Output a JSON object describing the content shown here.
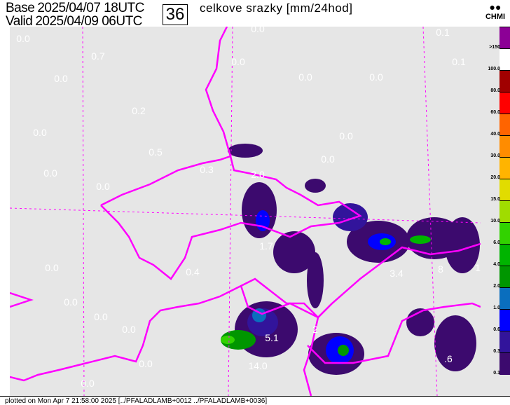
{
  "header": {
    "base_label": "Base",
    "base_time": "2025/04/07 18UTC",
    "valid_label": "Valid",
    "valid_time": "2025/04/09 06UTC",
    "forecast_hour": "36",
    "title": "celkove srazky [mm/24hod]",
    "logo_text": "CHMI"
  },
  "legend": {
    "levels": [
      {
        "label": ">150",
        "color": "#8c0096"
      },
      {
        "label": "100.0",
        "color": "#ffffff"
      },
      {
        "label": "80.0",
        "color": "#a00000"
      },
      {
        "label": "60.0",
        "color": "#ff0000"
      },
      {
        "label": "40.0",
        "color": "#ff6400"
      },
      {
        "label": "30.0",
        "color": "#ff8c00"
      },
      {
        "label": "20.0",
        "color": "#ffb400"
      },
      {
        "label": "15.0",
        "color": "#e1dc00"
      },
      {
        "label": "10.0",
        "color": "#a0dc00"
      },
      {
        "label": "6.0",
        "color": "#32d200"
      },
      {
        "label": "4.0",
        "color": "#00b400"
      },
      {
        "label": "2.0",
        "color": "#009600"
      },
      {
        "label": "1.0",
        "color": "#0a6ebe"
      },
      {
        "label": "0.6",
        "color": "#0000ff"
      },
      {
        "label": "0.3",
        "color": "#32149b"
      },
      {
        "label": "0.1",
        "color": "#3c0a6e"
      }
    ]
  },
  "map": {
    "background": "#e6e6e6",
    "border_color": "#ff00ff",
    "values": [
      "0.0",
      "0.1",
      "0.0",
      "0.7",
      "0.0",
      "0.1",
      "0.0",
      "0.0",
      "0.0",
      "0.2",
      "0.0",
      "0.0",
      "0.5",
      "0.0",
      "0.0",
      "0.3",
      "2.0",
      "0.0",
      "1.7",
      "3.4",
      "8",
      "1",
      "0.0",
      "0.4",
      "0.0",
      "0.0",
      "0.0",
      "5.1",
      "2",
      "14.0",
      "0.0",
      "0.0",
      ".6"
    ]
  },
  "footer": {
    "text": "plotted on Mon Apr  7 21:58:00 2025 [../PFALADLAMB+0012  ../PFALADLAMB+0036]"
  }
}
